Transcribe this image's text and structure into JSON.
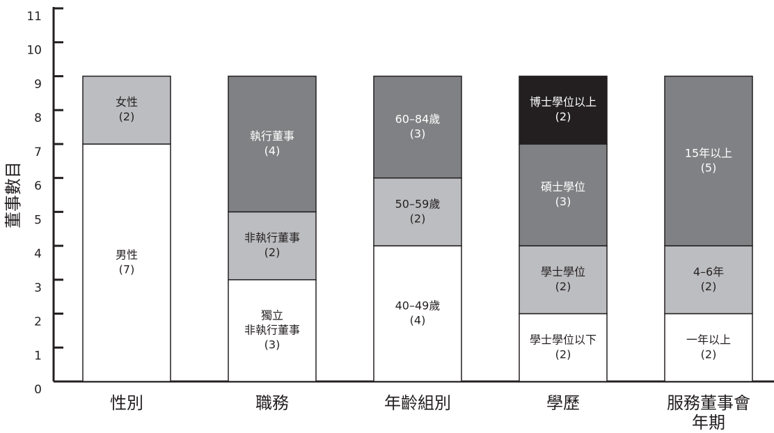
{
  "chart_data": {
    "type": "stacked_bar",
    "ylabel": "董事數目",
    "ylim": [
      0,
      11
    ],
    "yticks": [
      0,
      1,
      2,
      3,
      4,
      5,
      6,
      7,
      8,
      9,
      10,
      11
    ],
    "bars": [
      {
        "category": [
          "性別"
        ],
        "segments": [
          {
            "name": [
              "男性"
            ],
            "value": 7,
            "value_label": "(7)",
            "color": "#ffffff"
          },
          {
            "name": [
              "女性"
            ],
            "value": 2,
            "value_label": "(2)",
            "color": "#bcbdc0"
          }
        ]
      },
      {
        "category": [
          "職務"
        ],
        "segments": [
          {
            "name": [
              "獨立",
              "非執行董事"
            ],
            "value": 3,
            "value_label": "(3)",
            "color": "#ffffff"
          },
          {
            "name": [
              "非執行董事"
            ],
            "value": 2,
            "value_label": "(2)",
            "color": "#bcbdc0"
          },
          {
            "name": [
              "執行董事"
            ],
            "value": 4,
            "value_label": "(4)",
            "color": "#808184"
          }
        ]
      },
      {
        "category": [
          "年齡組別"
        ],
        "segments": [
          {
            "name": [
              "40–49歲"
            ],
            "value": 4,
            "value_label": "(4)",
            "color": "#ffffff"
          },
          {
            "name": [
              "50–59歲"
            ],
            "value": 2,
            "value_label": "(2)",
            "color": "#bcbdc0"
          },
          {
            "name": [
              "60–84歲"
            ],
            "value": 3,
            "value_label": "(3)",
            "color": "#808184"
          }
        ]
      },
      {
        "category": [
          "學歷"
        ],
        "segments": [
          {
            "name": [
              "學士學位以下"
            ],
            "value": 2,
            "value_label": "(2)",
            "color": "#ffffff"
          },
          {
            "name": [
              "學士學位"
            ],
            "value": 2,
            "value_label": "(2)",
            "color": "#bcbdc0"
          },
          {
            "name": [
              "碩士學位"
            ],
            "value": 3,
            "value_label": "(3)",
            "color": "#808184"
          },
          {
            "name": [
              "博士學位以上"
            ],
            "value": 2,
            "value_label": "(2)",
            "color": "#231f20"
          }
        ]
      },
      {
        "category": [
          "服務董事會",
          "年期"
        ],
        "segments": [
          {
            "name": [
              "一年以上"
            ],
            "value": 2,
            "value_label": "(2)",
            "color": "#ffffff"
          },
          {
            "name": [
              "4–6年"
            ],
            "value": 2,
            "value_label": "(2)",
            "color": "#bcbdc0"
          },
          {
            "name": [
              "15年以上"
            ],
            "value": 5,
            "value_label": "(5)",
            "color": "#808184"
          }
        ]
      }
    ]
  }
}
